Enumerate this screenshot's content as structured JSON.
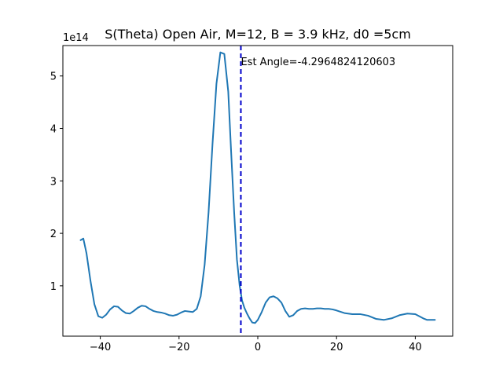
{
  "chart_data": {
    "type": "line",
    "title": "S(Theta) Open Air, M=12, B = 3.9 kHz, d0 =5cm",
    "xlabel": "",
    "ylabel": "",
    "y_offset_label": "1e14",
    "y_scale": 100000000000000.0,
    "xlim": [
      -49.5,
      49.5
    ],
    "ylim": [
      0.04,
      5.58
    ],
    "x_ticks": [
      -40,
      -20,
      0,
      20,
      40
    ],
    "x_tick_labels": [
      "−40",
      "−20",
      "0",
      "20",
      "40"
    ],
    "y_ticks": [
      1,
      2,
      3,
      4,
      5
    ],
    "y_tick_labels": [
      "1",
      "2",
      "3",
      "4",
      "5"
    ],
    "grid": false,
    "series": [
      {
        "color": "#1f77b4",
        "x": [
          -45,
          -44.3,
          -43.5,
          -42.5,
          -41.5,
          -40.5,
          -39.5,
          -38.5,
          -37.5,
          -36.5,
          -35.5,
          -34.5,
          -33.5,
          -32.5,
          -31.5,
          -30.5,
          -29.5,
          -28.5,
          -27.5,
          -26.5,
          -25.5,
          -24.5,
          -23.5,
          -22.5,
          -21.5,
          -20.5,
          -19.5,
          -18.5,
          -17.5,
          -16.5,
          -15.5,
          -14.5,
          -13.5,
          -12.5,
          -11.5,
          -10.5,
          -9.5,
          -8.5,
          -7.5,
          -6.8,
          -6.0,
          -5.3,
          -4.6,
          -4.0,
          -3.4,
          -2.8,
          -2.1,
          -1.4,
          -0.7,
          0,
          1,
          2,
          3,
          4,
          5,
          6,
          7,
          8,
          9,
          10,
          11,
          12,
          13,
          14,
          15,
          16,
          17,
          18,
          19,
          20,
          22,
          24,
          26,
          28,
          30,
          32,
          34,
          36,
          38,
          40,
          41,
          42,
          43,
          44,
          45
        ],
        "y": [
          1.87,
          1.9,
          1.62,
          1.1,
          0.65,
          0.42,
          0.39,
          0.45,
          0.55,
          0.61,
          0.6,
          0.53,
          0.48,
          0.47,
          0.52,
          0.58,
          0.62,
          0.61,
          0.56,
          0.52,
          0.5,
          0.49,
          0.47,
          0.44,
          0.43,
          0.45,
          0.49,
          0.52,
          0.51,
          0.5,
          0.56,
          0.8,
          1.4,
          2.4,
          3.7,
          4.85,
          5.45,
          5.42,
          4.7,
          3.6,
          2.4,
          1.5,
          1.0,
          0.72,
          0.58,
          0.48,
          0.38,
          0.3,
          0.29,
          0.35,
          0.5,
          0.68,
          0.78,
          0.8,
          0.76,
          0.68,
          0.52,
          0.41,
          0.44,
          0.52,
          0.56,
          0.57,
          0.56,
          0.56,
          0.57,
          0.57,
          0.56,
          0.56,
          0.55,
          0.53,
          0.48,
          0.46,
          0.46,
          0.43,
          0.37,
          0.35,
          0.38,
          0.44,
          0.47,
          0.46,
          0.42,
          0.38,
          0.35,
          0.35,
          0.35
        ]
      }
    ],
    "vline": {
      "x": -4.2964824120603,
      "color": "#0000cc",
      "style": "dashed"
    },
    "annotation": {
      "text": "Est Angle=-4.2964824120603",
      "x": -4.2964824120603,
      "y": 5.28
    }
  }
}
